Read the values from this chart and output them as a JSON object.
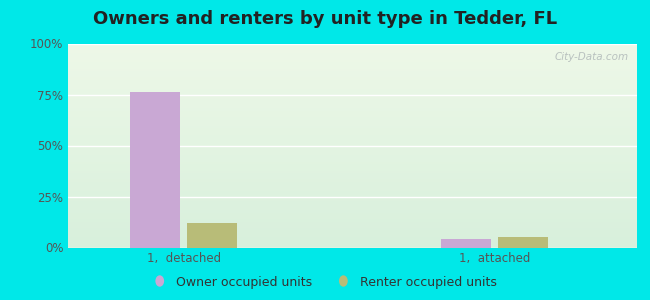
{
  "title": "Owners and renters by unit type in Tedder, FL",
  "categories": [
    "1,  detached",
    "1,  attached"
  ],
  "owner_values": [
    76,
    4
  ],
  "renter_values": [
    12,
    5
  ],
  "owner_color": "#c9a8d4",
  "renter_color": "#b8bc78",
  "ylim": [
    0,
    100
  ],
  "yticks": [
    0,
    25,
    50,
    75,
    100
  ],
  "ytick_labels": [
    "0%",
    "25%",
    "50%",
    "75%",
    "100%"
  ],
  "bg_color_top": "#eef8e8",
  "bg_color_bottom": "#d8f0dc",
  "outer_color": "#00e8e8",
  "title_fontsize": 13,
  "legend_labels": [
    "Owner occupied units",
    "Renter occupied units"
  ],
  "watermark": "City-Data.com",
  "bar_width": 0.28,
  "group_positions": [
    0.75,
    2.5
  ],
  "xlim": [
    0.1,
    3.3
  ]
}
